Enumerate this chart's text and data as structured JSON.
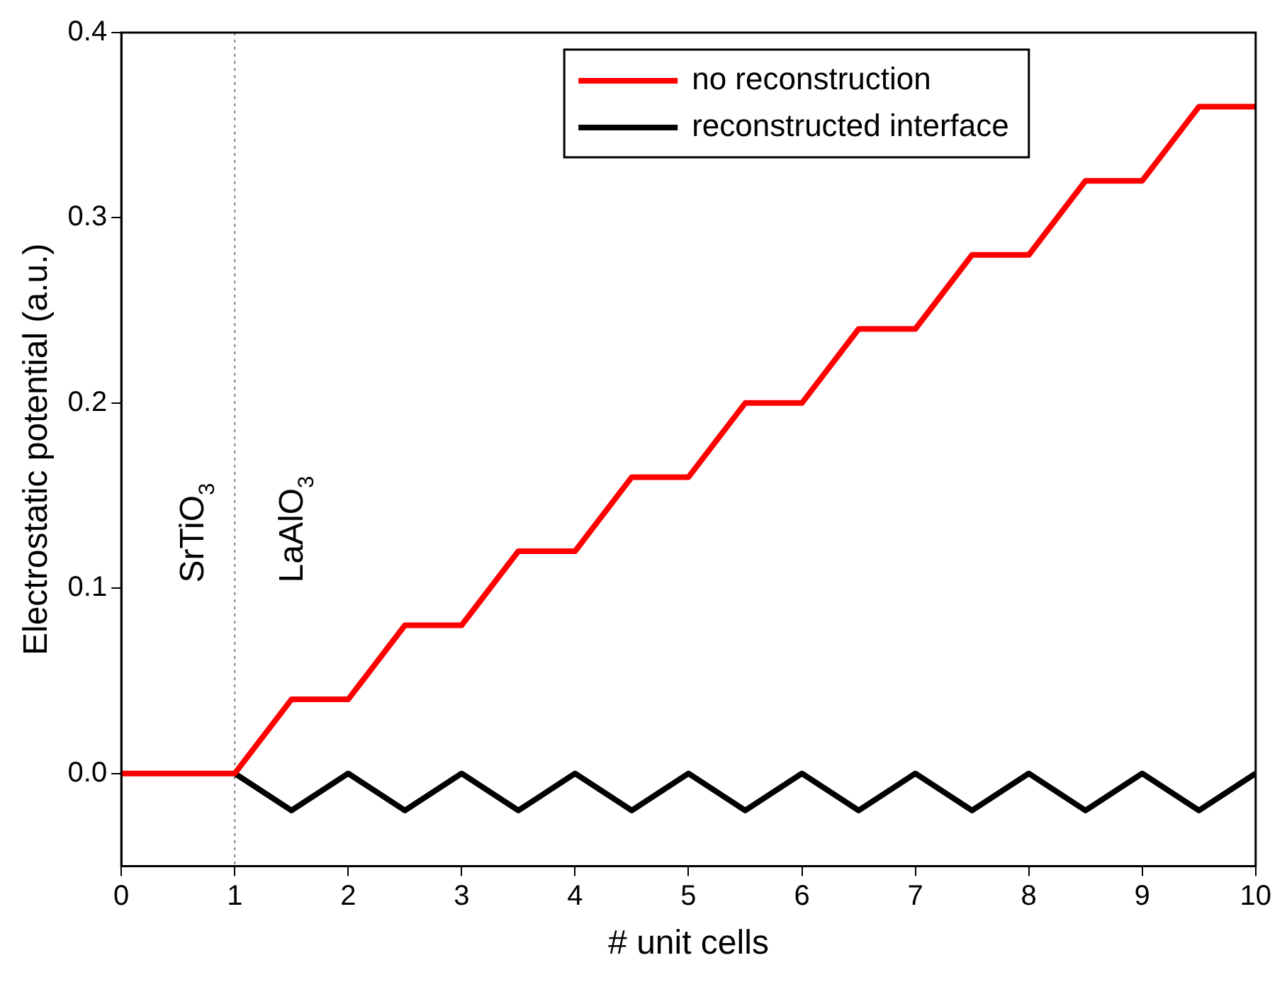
{
  "chart_data": {
    "type": "line",
    "xlabel": "# unit cells",
    "ylabel": "Electrostatic potential (a.u.)",
    "xlim": [
      0,
      10
    ],
    "xticks": [
      0,
      1,
      2,
      3,
      4,
      5,
      6,
      7,
      8,
      9,
      10
    ],
    "ylim": [
      -0.05,
      0.4
    ],
    "yticks": [
      {
        "value": 0,
        "label": "0.0"
      },
      0.1,
      0.2,
      0.3,
      0.4
    ],
    "grid": false,
    "legend": "top right",
    "line_style": "solid",
    "marker": "none",
    "series": [
      {
        "name": "no reconstruction",
        "color": "#ff0000",
        "x": [
          0,
          1,
          1.5,
          2,
          2.5,
          3,
          3.5,
          4,
          4.5,
          5,
          5.5,
          6,
          6.5,
          7,
          7.5,
          8,
          8.5,
          9,
          9.5,
          10
        ],
        "values": [
          0,
          0,
          0.04,
          0.04,
          0.08,
          0.08,
          0.12,
          0.12,
          0.16,
          0.16,
          0.2,
          0.2,
          0.24,
          0.24,
          0.28,
          0.28,
          0.32,
          0.32,
          0.36,
          0.36
        ]
      },
      {
        "name": "reconstructed interface",
        "color": "#000000",
        "x": [
          1,
          1.5,
          2,
          2.5,
          3,
          3.5,
          4,
          4.5,
          5,
          5.5,
          6,
          6.5,
          7,
          7.5,
          8,
          8.5,
          9,
          9.5,
          10
        ],
        "values": [
          0,
          -0.02,
          0,
          -0.02,
          0,
          -0.02,
          0,
          -0.02,
          0,
          -0.02,
          0,
          -0.02,
          0,
          -0.02,
          0,
          -0.02,
          0,
          -0.02,
          0
        ]
      }
    ],
    "ref_lines": [
      {
        "axis": "x",
        "value": 1,
        "color": "#808080",
        "line_style": "dotted"
      }
    ],
    "annotations": [
      "SrTiO$_{3}$",
      "LaAlO$_{3}$"
    ]
  }
}
